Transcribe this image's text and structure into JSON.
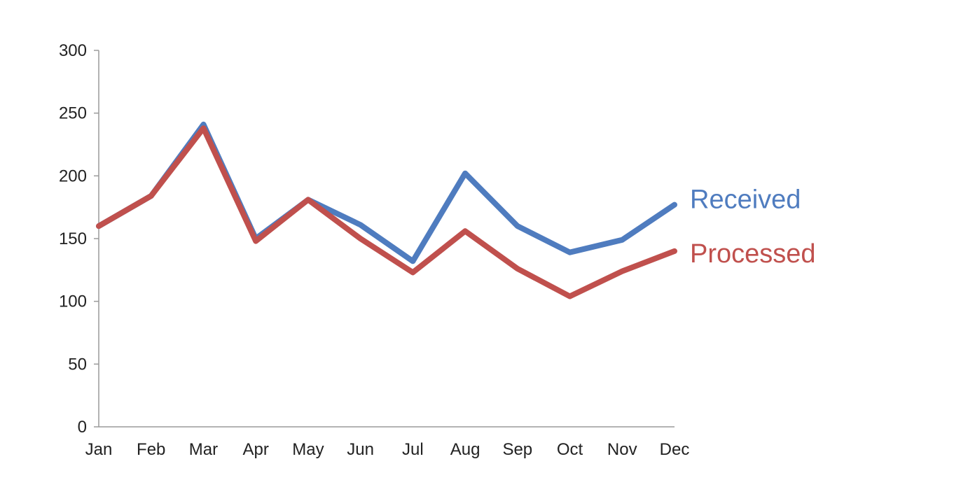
{
  "chart_data": {
    "type": "line",
    "title": "",
    "xlabel": "",
    "ylabel": "",
    "categories": [
      "Jan",
      "Feb",
      "Mar",
      "Apr",
      "May",
      "Jun",
      "Jul",
      "Aug",
      "Sep",
      "Oct",
      "Nov",
      "Dec"
    ],
    "ylim": [
      0,
      300
    ],
    "yticks": [
      0,
      50,
      100,
      150,
      200,
      250,
      300
    ],
    "grid": false,
    "legend": "direct labels at right end of lines",
    "series": [
      {
        "name": "Received",
        "color": "#4f7cbf",
        "values": [
          160,
          184,
          241,
          150,
          181,
          161,
          132,
          202,
          160,
          139,
          149,
          177
        ]
      },
      {
        "name": "Processed",
        "color": "#c0504d",
        "values": [
          160,
          184,
          238,
          148,
          181,
          150,
          123,
          156,
          126,
          104,
          124,
          140
        ]
      }
    ]
  }
}
